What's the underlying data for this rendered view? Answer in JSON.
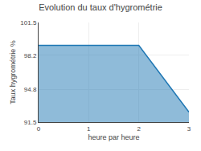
{
  "chart_data": {
    "type": "area",
    "title": "Evolution du taux d'hygrométrie",
    "xlabel": "heure par heure",
    "ylabel": "Taux hygrométrie %",
    "x": [
      0,
      1,
      2,
      3
    ],
    "values": [
      99.2,
      99.2,
      99.2,
      92.5
    ],
    "xlim": [
      0,
      3
    ],
    "xticks": [
      0,
      1,
      2,
      3
    ],
    "ylim": [
      91.5,
      101.5
    ],
    "yticks": [
      91.5,
      94.8,
      98.2,
      101.5
    ],
    "grid": true
  }
}
